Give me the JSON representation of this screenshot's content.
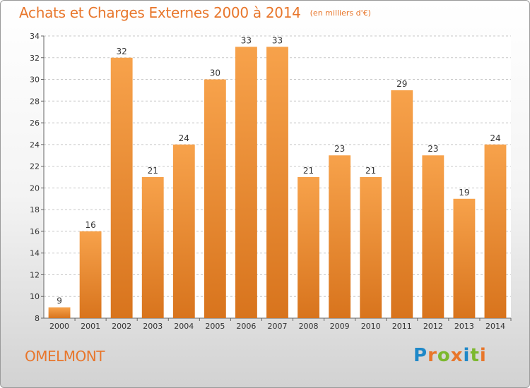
{
  "header": {
    "title": "Achats et Charges Externes 2000 à 2014",
    "unit": "(en milliers d'€)"
  },
  "footer": {
    "commune": "OMELMONT",
    "logo": "Proxiti"
  },
  "colors": {
    "accent": "#e8762b",
    "bar_light": "#f7a24b",
    "bar_dark": "#d8741d",
    "logo_letters": [
      "#1e88c8",
      "#e8762b",
      "#7cb82f",
      "#e8762b",
      "#1e88c8",
      "#7cb82f",
      "#e8762b"
    ]
  },
  "chart_data": {
    "type": "bar",
    "title": "Achats et Charges Externes 2000 à 2014",
    "categories": [
      "2000",
      "2001",
      "2002",
      "2003",
      "2004",
      "2005",
      "2006",
      "2007",
      "2008",
      "2009",
      "2010",
      "2011",
      "2012",
      "2013",
      "2014"
    ],
    "values": [
      9,
      16,
      32,
      21,
      24,
      30,
      33,
      33,
      21,
      23,
      21,
      29,
      23,
      19,
      24
    ],
    "ylim": [
      8,
      34
    ],
    "yticks": [
      8,
      10,
      12,
      14,
      16,
      18,
      20,
      22,
      24,
      26,
      28,
      30,
      32,
      34
    ],
    "grid": true,
    "xlabel": "",
    "ylabel": ""
  }
}
